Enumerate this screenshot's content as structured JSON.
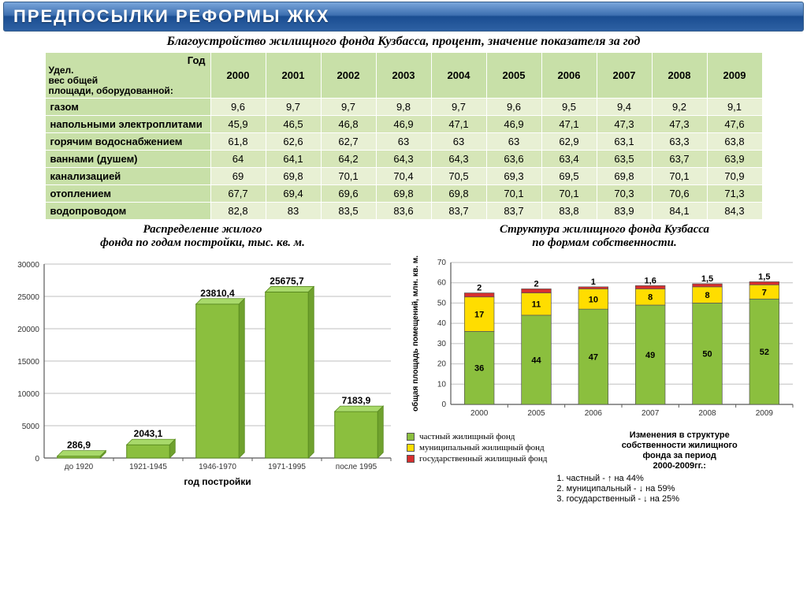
{
  "banner": "ПРЕДПОСЫЛКИ  РЕФОРМЫ ЖКХ",
  "tableTitle": "Благоустройство жилищного фонда Кузбасса, процент, значение показателя за год",
  "corner": {
    "top": "Год",
    "bottom": "Удел.\nвес общей\nплощади, оборудованной:"
  },
  "years": [
    "2000",
    "2001",
    "2002",
    "2003",
    "2004",
    "2005",
    "2006",
    "2007",
    "2008",
    "2009"
  ],
  "rows": [
    {
      "label": "газом",
      "vals": [
        "9,6",
        "9,7",
        "9,7",
        "9,8",
        "9,7",
        "9,6",
        "9,5",
        "9,4",
        "9,2",
        "9,1"
      ]
    },
    {
      "label": "напольными электроплитами",
      "vals": [
        "45,9",
        "46,5",
        "46,8",
        "46,9",
        "47,1",
        "46,9",
        "47,1",
        "47,3",
        "47,3",
        "47,6"
      ]
    },
    {
      "label": "горячим водоснабжением",
      "vals": [
        "61,8",
        "62,6",
        "62,7",
        "63",
        "63",
        "63",
        "62,9",
        "63,1",
        "63,3",
        "63,8"
      ]
    },
    {
      "label": "ваннами (душем)",
      "vals": [
        "64",
        "64,1",
        "64,2",
        "64,3",
        "64,3",
        "63,6",
        "63,4",
        "63,5",
        "63,7",
        "63,9"
      ]
    },
    {
      "label": "канализацией",
      "vals": [
        "69",
        "69,8",
        "70,1",
        "70,4",
        "70,5",
        "69,3",
        "69,5",
        "69,8",
        "70,1",
        "70,9"
      ]
    },
    {
      "label": "отоплением",
      "vals": [
        "67,7",
        "69,4",
        "69,6",
        "69,8",
        "69,8",
        "70,1",
        "70,1",
        "70,3",
        "70,6",
        "71,3"
      ]
    },
    {
      "label": "водопроводом",
      "vals": [
        "82,8",
        "83",
        "83,5",
        "83,6",
        "83,7",
        "83,7",
        "83,8",
        "83,9",
        "84,1",
        "84,3"
      ]
    }
  ],
  "chart1": {
    "title": "Распределение жилого\nфонда по годам постройки, тыс. кв. м.",
    "xlabel": "год постройки",
    "categories": [
      "до 1920",
      "1921-1945",
      "1946-1970",
      "1971-1995",
      "после 1995"
    ],
    "values": [
      286.9,
      2043.1,
      23810.4,
      25675.7,
      7183.9
    ],
    "labels": [
      "286,9",
      "2043,1",
      "23810,4",
      "25675,7",
      "7183,9"
    ],
    "ylim": [
      0,
      30000
    ],
    "ytick_step": 5000,
    "bar_color": "#8bbf3e",
    "bar_edge": "#5a8a20",
    "grid_color": "#bfbfbf",
    "axis_color": "#595959",
    "label_fontsize": 12,
    "tick_fontsize": 10
  },
  "chart2": {
    "title": "Структура жилищного фонда Кузбасса\nпо формам собственности.",
    "ylabel": "общая площадь помещений, млн. кв. м.",
    "categories": [
      "2000",
      "2005",
      "2006",
      "2007",
      "2008",
      "2009"
    ],
    "series": [
      {
        "name": "частный жилищный фонд",
        "color": "#8bbf3e",
        "values": [
          36,
          44,
          47,
          49,
          50,
          52
        ]
      },
      {
        "name": "муниципальный жилищный фонд",
        "color": "#ffdd00",
        "values": [
          17,
          11,
          10,
          8,
          8,
          7
        ]
      },
      {
        "name": "государственный жилищный фонд",
        "color": "#d62f2f",
        "values": [
          2,
          2,
          1,
          1.6,
          1.5,
          1.5
        ],
        "labels": [
          "2",
          "2",
          "1",
          "1,6",
          "1,5",
          "1,5"
        ]
      }
    ],
    "ylim": [
      0,
      70
    ],
    "ytick_step": 10,
    "grid_color": "#bfbfbf",
    "axis_color": "#595959",
    "tick_fontsize": 10,
    "label_fontsize": 11
  },
  "notes": {
    "title": "Изменения в структуре\nсобственности жилищного\nфонда за  период\n2000-2009гг.:",
    "items": [
      "1. частный   - ↑ на 44%",
      "2. муниципальный - ↓ на 59%",
      "3. государственный  - ↓ на 25%"
    ]
  },
  "colors": {
    "banner_text": "#ffffff"
  }
}
